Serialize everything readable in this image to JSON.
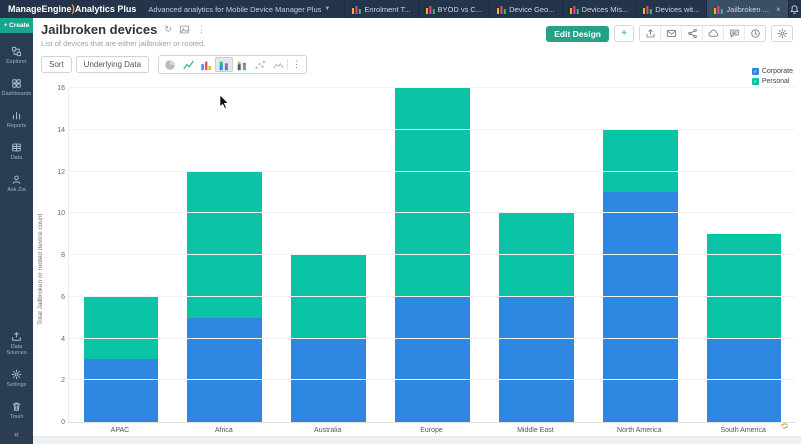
{
  "topbar": {
    "logo_part1": "ManageEngine",
    "logo_part2": "Analytics Plus",
    "workspace_label": "Advanced analytics for Mobile Device Manager Plus",
    "tabs": [
      {
        "label": "Enrolment T...",
        "active": false,
        "closable": false
      },
      {
        "label": "BYOD vs C...",
        "active": false,
        "closable": false
      },
      {
        "label": "Device Geo...",
        "active": false,
        "closable": false
      },
      {
        "label": "Devices Mis...",
        "active": false,
        "closable": false
      },
      {
        "label": "Devices wit...",
        "active": false,
        "closable": false
      },
      {
        "label": "Jailbroken ...",
        "active": true,
        "closable": true
      }
    ],
    "icons": [
      "bell-icon",
      "gear-icon",
      "help-icon"
    ]
  },
  "sidebar": {
    "create_label": "+ Create",
    "items": [
      {
        "label": "Explorer",
        "icon": "explorer-icon"
      },
      {
        "label": "Dashboards",
        "icon": "dashboards-icon"
      },
      {
        "label": "Reports",
        "icon": "reports-icon"
      },
      {
        "label": "Data",
        "icon": "data-icon"
      },
      {
        "label": "Ask Zia",
        "icon": "ask-zia-icon"
      }
    ],
    "bottom_items": [
      {
        "label": "Data Sources",
        "icon": "data-sources-icon"
      },
      {
        "label": "Settings",
        "icon": "settings-icon"
      },
      {
        "label": "Trash",
        "icon": "trash-icon"
      }
    ]
  },
  "header": {
    "title": "Jailbroken devices",
    "subtitle": "List of devices that are either jailbroken or rooted.",
    "title_icons": [
      "refresh-icon",
      "image-icon",
      "kebab-icon"
    ],
    "edit_design_label": "Edit Design",
    "add_label": "+",
    "actions": [
      "export-icon",
      "email-icon",
      "share-icon",
      "publish-icon",
      "comment-icon",
      "history-icon"
    ]
  },
  "toolbar": {
    "sort_label": "Sort",
    "underlying_data_label": "Underlying Data",
    "chart_types": [
      {
        "icon": "pie-chart-icon",
        "active": false
      },
      {
        "icon": "line-chart-icon",
        "active": false
      },
      {
        "icon": "bar-chart-icon",
        "active": false
      },
      {
        "icon": "stacked-bar-icon",
        "active": true
      },
      {
        "icon": "stacked-colored-icon",
        "active": false
      },
      {
        "icon": "scatter-icon",
        "active": false
      },
      {
        "icon": "sparkline-icon",
        "active": false
      }
    ],
    "more_label": "⋮"
  },
  "chart_data": {
    "type": "bar",
    "stacked": true,
    "title": "Jailbroken devices",
    "categories": [
      "APAC",
      "Africa",
      "Australia",
      "Europe",
      "Middle East",
      "North America",
      "South America"
    ],
    "series": [
      {
        "name": "Corporate",
        "color": "#2e87e0",
        "values": [
          3,
          5,
          4,
          6,
          6,
          11,
          4
        ]
      },
      {
        "name": "Personal",
        "color": "#0bc3a5",
        "values": [
          3,
          7,
          4,
          10,
          4,
          3,
          5
        ]
      }
    ],
    "xlabel": "",
    "ylabel": "Total Jailbroken or rooted device count",
    "ylim": [
      0,
      16
    ],
    "ytick_step": 2,
    "grid": true,
    "legend_position": "top-right"
  },
  "colors": {
    "corporate": "#2e87e0",
    "personal": "#0bc3a5",
    "topbar_bg": "#24344a",
    "sidebar_bg": "#2b3d52",
    "accent_green": "#23a286"
  }
}
